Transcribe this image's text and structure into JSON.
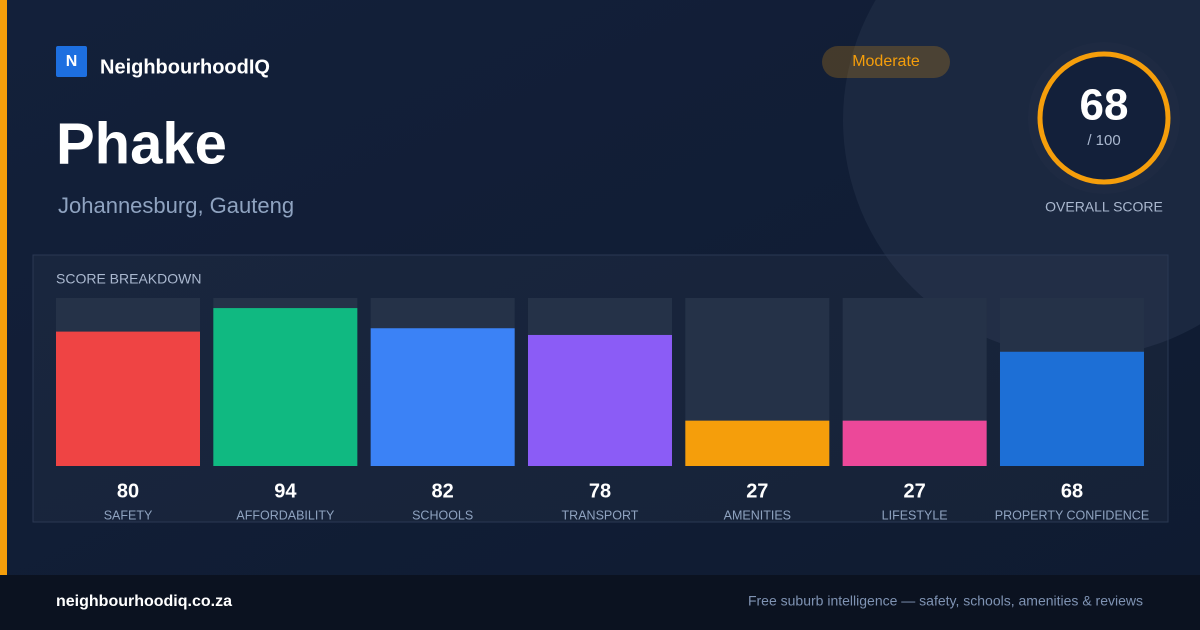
{
  "brand": {
    "logo": "N",
    "name": "NeighbourhoodIQ"
  },
  "badge": "Moderate",
  "suburb": "Phake",
  "location": "Johannesburg, Gauteng",
  "score": {
    "value": 68,
    "max": "/ 100",
    "label": "OVERALL SCORE"
  },
  "chart_data": {
    "type": "bar",
    "title": "SCORE BREAKDOWN",
    "categories": [
      "SAFETY",
      "AFFORDABILITY",
      "SCHOOLS",
      "TRANSPORT",
      "AMENITIES",
      "LIFESTYLE",
      "PROPERTY CONFIDENCE"
    ],
    "values": [
      80,
      94,
      82,
      78,
      27,
      27,
      68
    ],
    "colors": [
      "#ef4444",
      "#10b981",
      "#3b82f6",
      "#8b5cf6",
      "#f59e0b",
      "#ec4899",
      "#1d6fd6"
    ],
    "ylim": [
      0,
      100
    ]
  },
  "footer": {
    "url": "neighbourhoodiq.co.za",
    "tagline": "Free suburb intelligence — safety, schools, amenities & reviews"
  }
}
